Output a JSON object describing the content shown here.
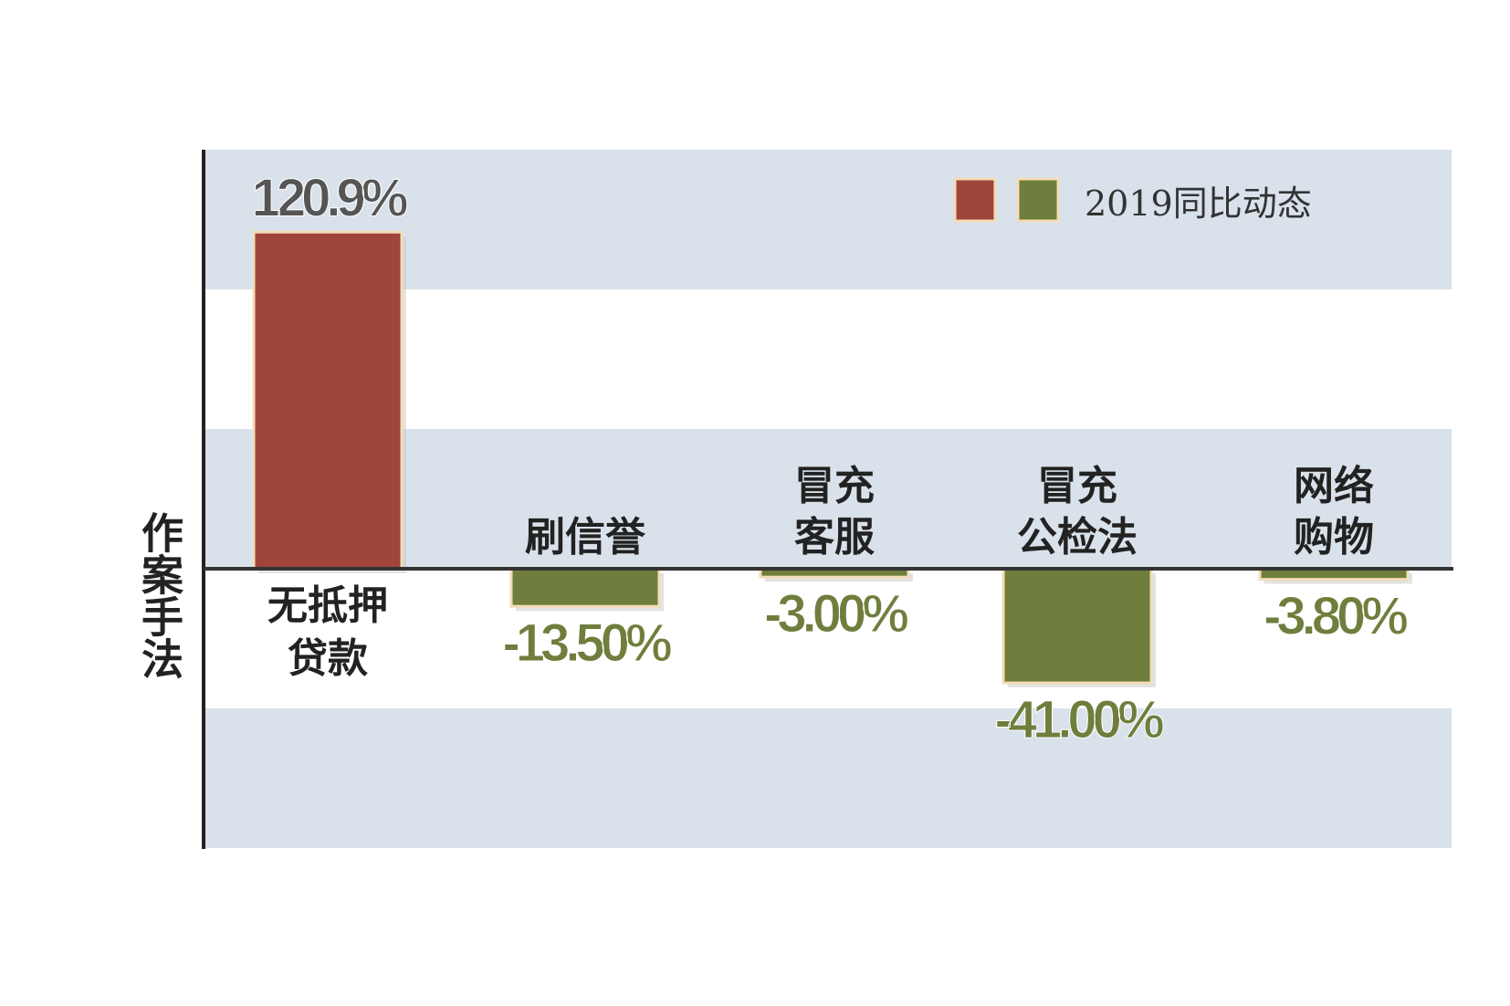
{
  "chart_data": {
    "type": "bar",
    "title": "",
    "ylabel": "作案手法",
    "xlabel": "",
    "legend": {
      "label": "2019同比动态",
      "position": "top-right",
      "swatches": [
        "#a0453a",
        "#6f7e3c"
      ]
    },
    "categories": [
      [
        "无抵押",
        "贷款"
      ],
      [
        "刷信誉"
      ],
      [
        "冒充",
        "客服"
      ],
      [
        "冒充",
        "公检法"
      ],
      [
        "网络",
        "购物"
      ]
    ],
    "values": [
      120.9,
      -13.5,
      -3.0,
      -41.0,
      -3.8
    ],
    "value_labels": [
      "120.9%",
      "-13.50%",
      "-3.00%",
      "-41.00%",
      "-3.80%"
    ],
    "colors": {
      "positive": "#a0453a",
      "negative": "#6f7e3c",
      "band": "#d9e2ea",
      "positive_label": "#555555",
      "negative_label": "#6f7e3c"
    },
    "grid": false
  }
}
